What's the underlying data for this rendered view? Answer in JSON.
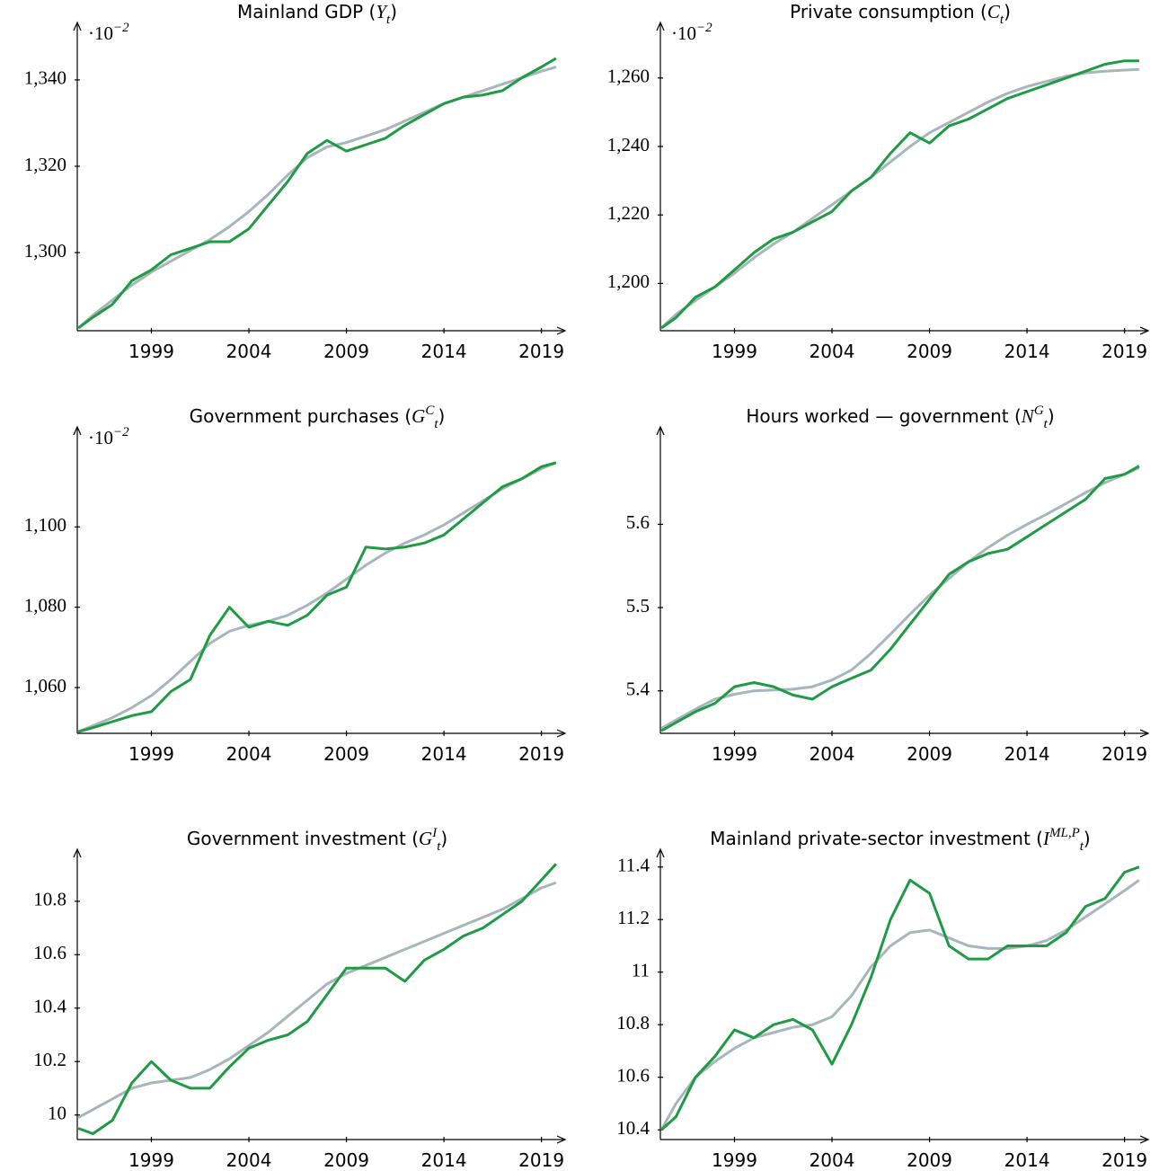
{
  "chart_data": [
    {
      "type": "line",
      "title": [
        {
          "text": "Mainland GDP ("
        },
        {
          "text": "Y",
          "style": "italic"
        },
        {
          "text": "t",
          "style": "sub"
        },
        {
          "text": ")"
        }
      ],
      "y_multiplier": [
        {
          "text": "·10"
        },
        {
          "text": "−2",
          "style": "sup"
        }
      ],
      "x": [
        1995.25,
        1996,
        1997,
        1998,
        1999,
        2000,
        2001,
        2002,
        2003,
        2004,
        2005,
        2006,
        2007,
        2008,
        2009,
        2010,
        2011,
        2012,
        2013,
        2014,
        2015,
        2016,
        2017,
        2018,
        2019,
        2019.75
      ],
      "series": [
        {
          "color": "#1f9a45",
          "values": [
            1282.5,
            1285,
            1288,
            1293.5,
            1296,
            1299.5,
            1301,
            1302.5,
            1302.5,
            1305.5,
            1311,
            1316.5,
            1323,
            1326,
            1323.5,
            1325,
            1326.5,
            1329.5,
            1332,
            1334.5,
            1336,
            1336.5,
            1337.5,
            1340.5,
            1343,
            1345
          ]
        },
        {
          "color": "#a6b6bb",
          "values": [
            1282.5,
            1285.5,
            1289,
            1292.5,
            1295.5,
            1298,
            1300.5,
            1303,
            1306,
            1309.5,
            1313.5,
            1318,
            1322,
            1324.5,
            1325.5,
            1327,
            1328.5,
            1330.5,
            1332.5,
            1334.5,
            1336,
            1337.5,
            1339,
            1340.5,
            1342,
            1343
          ]
        }
      ],
      "xlim": [
        1995.2,
        2019.8
      ],
      "xticks": [
        1999,
        2004,
        2009,
        2014,
        2019
      ],
      "ylim": [
        1281.9,
        1350.6
      ],
      "yticks": [
        {
          "value": 1300,
          "label": "1,300"
        },
        {
          "value": 1320,
          "label": "1,320"
        },
        {
          "value": 1340,
          "label": "1,340"
        }
      ]
    },
    {
      "type": "line",
      "title": [
        {
          "text": "Private consumption ("
        },
        {
          "text": "C",
          "style": "italic"
        },
        {
          "text": "t",
          "style": "sub"
        },
        {
          "text": ")"
        }
      ],
      "y_multiplier": [
        {
          "text": "·10"
        },
        {
          "text": "−2",
          "style": "sup"
        }
      ],
      "x": [
        1995.25,
        1996,
        1997,
        1998,
        1999,
        2000,
        2001,
        2002,
        2003,
        2004,
        2005,
        2006,
        2007,
        2008,
        2009,
        2010,
        2011,
        2012,
        2013,
        2014,
        2015,
        2016,
        2017,
        2018,
        2019,
        2019.75
      ],
      "series": [
        {
          "color": "#1f9a45",
          "values": [
            1187,
            1190,
            1196,
            1199,
            1204,
            1209,
            1213,
            1215,
            1218,
            1221,
            1227,
            1231,
            1238,
            1244,
            1241,
            1246,
            1248,
            1251,
            1254,
            1256,
            1258,
            1260,
            1262,
            1264,
            1265,
            1265
          ]
        },
        {
          "color": "#a6b6bb",
          "values": [
            1187,
            1191,
            1195,
            1199,
            1203,
            1207.5,
            1211.5,
            1215,
            1219,
            1223,
            1227,
            1231,
            1235.5,
            1240,
            1244,
            1247,
            1250,
            1253,
            1255.5,
            1257.5,
            1259,
            1260.5,
            1261.5,
            1262,
            1262.3,
            1262.5
          ]
        }
      ],
      "xlim": [
        1995.2,
        2019.8
      ],
      "xticks": [
        1999,
        2004,
        2009,
        2014,
        2019
      ],
      "ylim": [
        1186.2,
        1272.8
      ],
      "yticks": [
        {
          "value": 1200,
          "label": "1,200"
        },
        {
          "value": 1220,
          "label": "1,220"
        },
        {
          "value": 1240,
          "label": "1,240"
        },
        {
          "value": 1260,
          "label": "1,260"
        }
      ]
    },
    {
      "type": "line",
      "title": [
        {
          "text": "Government purchases ("
        },
        {
          "text": "G",
          "style": "italic"
        },
        {
          "text": "C",
          "style": "sup"
        },
        {
          "text": "t",
          "style": "sub"
        },
        {
          "text": ")"
        }
      ],
      "y_multiplier": [
        {
          "text": "·10"
        },
        {
          "text": "−2",
          "style": "sup"
        }
      ],
      "x": [
        1995.25,
        1996,
        1997,
        1998,
        1999,
        2000,
        2001,
        2002,
        2003,
        2004,
        2005,
        2006,
        2007,
        2008,
        2009,
        2010,
        2011,
        2012,
        2013,
        2014,
        2015,
        2016,
        2017,
        2018,
        2019,
        2019.75
      ],
      "series": [
        {
          "color": "#1f9a45",
          "values": [
            1049,
            1050,
            1051.5,
            1053,
            1054,
            1059,
            1062,
            1073,
            1080,
            1075,
            1076.5,
            1075.5,
            1078,
            1083,
            1085,
            1095,
            1094.5,
            1095,
            1096,
            1098,
            1102,
            1106,
            1110,
            1112,
            1115,
            1116
          ]
        },
        {
          "color": "#a6b6bb",
          "values": [
            1049,
            1050.5,
            1052.5,
            1055,
            1058,
            1062,
            1066.5,
            1071,
            1074,
            1075.5,
            1076.5,
            1078,
            1080.5,
            1083.5,
            1087,
            1090.5,
            1093.5,
            1096,
            1098,
            1100.5,
            1103.5,
            1106.5,
            1109.5,
            1112,
            1114.5,
            1116
          ]
        }
      ],
      "xlim": [
        1995.2,
        2019.8
      ],
      "xticks": [
        1999,
        2004,
        2009,
        2014,
        2019
      ],
      "ylim": [
        1048.6,
        1122
      ],
      "yticks": [
        {
          "value": 1060,
          "label": "1,060"
        },
        {
          "value": 1080,
          "label": "1,080"
        },
        {
          "value": 1100,
          "label": "1,100"
        }
      ]
    },
    {
      "type": "line",
      "title": [
        {
          "text": "Hours worked — government ("
        },
        {
          "text": "N",
          "style": "italic"
        },
        {
          "text": "G",
          "style": "sup"
        },
        {
          "text": "t",
          "style": "sub"
        },
        {
          "text": ")"
        }
      ],
      "x": [
        1995.25,
        1996,
        1997,
        1998,
        1999,
        2000,
        2001,
        2002,
        2003,
        2004,
        2005,
        2006,
        2007,
        2008,
        2009,
        2010,
        2011,
        2012,
        2013,
        2014,
        2015,
        2016,
        2017,
        2018,
        2019,
        2019.75
      ],
      "series": [
        {
          "color": "#1f9a45",
          "values": [
            5.352,
            5.362,
            5.375,
            5.385,
            5.405,
            5.41,
            5.405,
            5.395,
            5.39,
            5.405,
            5.415,
            5.425,
            5.45,
            5.48,
            5.51,
            5.54,
            5.555,
            5.565,
            5.57,
            5.585,
            5.6,
            5.615,
            5.63,
            5.655,
            5.66,
            5.67
          ]
        },
        {
          "color": "#a6b6bb",
          "values": [
            5.355,
            5.365,
            5.378,
            5.39,
            5.396,
            5.4,
            5.401,
            5.402,
            5.405,
            5.413,
            5.425,
            5.445,
            5.468,
            5.492,
            5.515,
            5.535,
            5.555,
            5.572,
            5.587,
            5.6,
            5.612,
            5.625,
            5.638,
            5.65,
            5.66,
            5.668
          ]
        }
      ],
      "xlim": [
        1995.2,
        2019.8
      ],
      "xticks": [
        1999,
        2004,
        2009,
        2014,
        2019
      ],
      "ylim": [
        5.349,
        5.703
      ],
      "yticks": [
        5.4,
        5.5,
        5.6
      ]
    },
    {
      "type": "line",
      "title": [
        {
          "text": "Government investment ("
        },
        {
          "text": "G",
          "style": "italic"
        },
        {
          "text": "I",
          "style": "sup"
        },
        {
          "text": "t",
          "style": "sub"
        },
        {
          "text": ")"
        }
      ],
      "x": [
        1995.25,
        1996,
        1997,
        1998,
        1999,
        2000,
        2001,
        2002,
        2003,
        2004,
        2005,
        2006,
        2007,
        2008,
        2009,
        2010,
        2011,
        2012,
        2013,
        2014,
        2015,
        2016,
        2017,
        2018,
        2019,
        2019.75
      ],
      "series": [
        {
          "color": "#1f9a45",
          "values": [
            9.95,
            9.93,
            9.98,
            10.12,
            10.2,
            10.13,
            10.1,
            10.1,
            10.18,
            10.25,
            10.28,
            10.3,
            10.35,
            10.45,
            10.55,
            10.55,
            10.55,
            10.5,
            10.58,
            10.62,
            10.67,
            10.7,
            10.75,
            10.8,
            10.88,
            10.94
          ]
        },
        {
          "color": "#a6b6bb",
          "values": [
            9.99,
            10.02,
            10.06,
            10.1,
            10.12,
            10.13,
            10.14,
            10.17,
            10.21,
            10.26,
            10.31,
            10.37,
            10.43,
            10.49,
            10.53,
            10.56,
            10.59,
            10.62,
            10.65,
            10.68,
            10.71,
            10.74,
            10.77,
            10.81,
            10.85,
            10.87
          ]
        }
      ],
      "xlim": [
        1995.2,
        2019.8
      ],
      "xticks": [
        1999,
        2004,
        2009,
        2014,
        2019
      ],
      "ylim": [
        9.908,
        10.951
      ],
      "yticks": [
        10,
        10.2,
        10.4,
        10.6,
        10.8
      ]
    },
    {
      "type": "line",
      "title": [
        {
          "text": "Mainland private-sector investment ("
        },
        {
          "text": "I",
          "style": "italic"
        },
        {
          "text": "ML,P",
          "style": "sup"
        },
        {
          "text": "t",
          "style": "sub"
        },
        {
          "text": ")"
        }
      ],
      "x": [
        1995.25,
        1996,
        1997,
        1998,
        1999,
        2000,
        2001,
        2002,
        2003,
        2004,
        2005,
        2006,
        2007,
        2008,
        2009,
        2010,
        2011,
        2012,
        2013,
        2014,
        2015,
        2016,
        2017,
        2018,
        2019,
        2019.75
      ],
      "series": [
        {
          "color": "#1f9a45",
          "values": [
            10.4,
            10.45,
            10.6,
            10.68,
            10.78,
            10.75,
            10.8,
            10.82,
            10.78,
            10.65,
            10.8,
            10.98,
            11.2,
            11.35,
            11.3,
            11.1,
            11.05,
            11.05,
            11.1,
            11.1,
            11.1,
            11.15,
            11.25,
            11.28,
            11.38,
            11.4
          ]
        },
        {
          "color": "#a6b6bb",
          "values": [
            10.4,
            10.5,
            10.6,
            10.66,
            10.71,
            10.75,
            10.77,
            10.79,
            10.8,
            10.83,
            10.91,
            11.02,
            11.1,
            11.15,
            11.16,
            11.13,
            11.1,
            11.09,
            11.09,
            11.1,
            11.12,
            11.16,
            11.21,
            11.26,
            11.31,
            11.35
          ]
        }
      ],
      "xlim": [
        1995.2,
        2019.8
      ],
      "xticks": [
        1999,
        2004,
        2009,
        2014,
        2019
      ],
      "ylim": [
        10.363,
        11.423
      ],
      "yticks": [
        10.4,
        10.6,
        10.8,
        11,
        11.2,
        11.4
      ]
    }
  ]
}
